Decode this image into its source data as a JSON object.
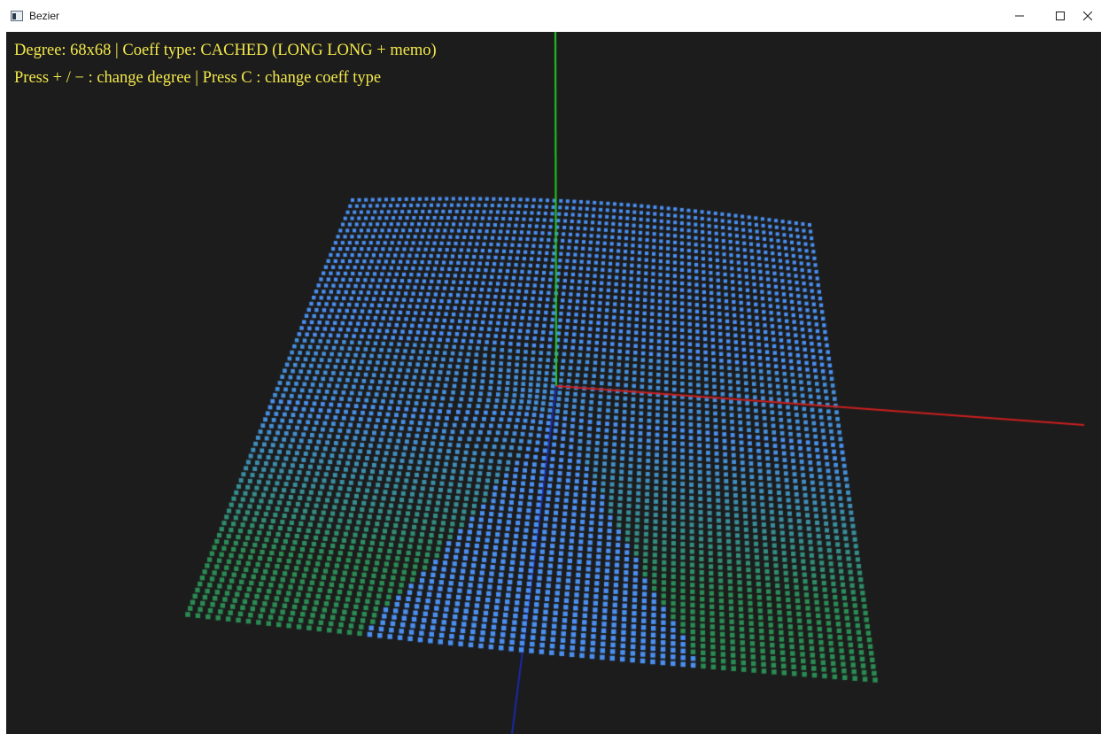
{
  "window": {
    "title": "Bezier",
    "icon": "app-window-icon",
    "controls": {
      "minimize_icon": "minimize-icon",
      "maximize_icon": "maximize-icon",
      "close_icon": "close-icon"
    }
  },
  "hud": {
    "line1": "Degree: 68x68 | Coeff type: CACHED (LONG LONG + memo)",
    "line2": "Press + / − : change degree | Press C : change coeff type"
  },
  "scene": {
    "background_color": "#1c1c1c",
    "axis_colors": {
      "x": "#cc1f1f",
      "y": "#22cc22",
      "z": "#1a2aa8"
    },
    "surface_colors": {
      "blue": "#4a8ff0",
      "green": "#1f8a1f",
      "point": "#4a90e8"
    },
    "hud_color": "#f3e84a",
    "degree": 68
  }
}
